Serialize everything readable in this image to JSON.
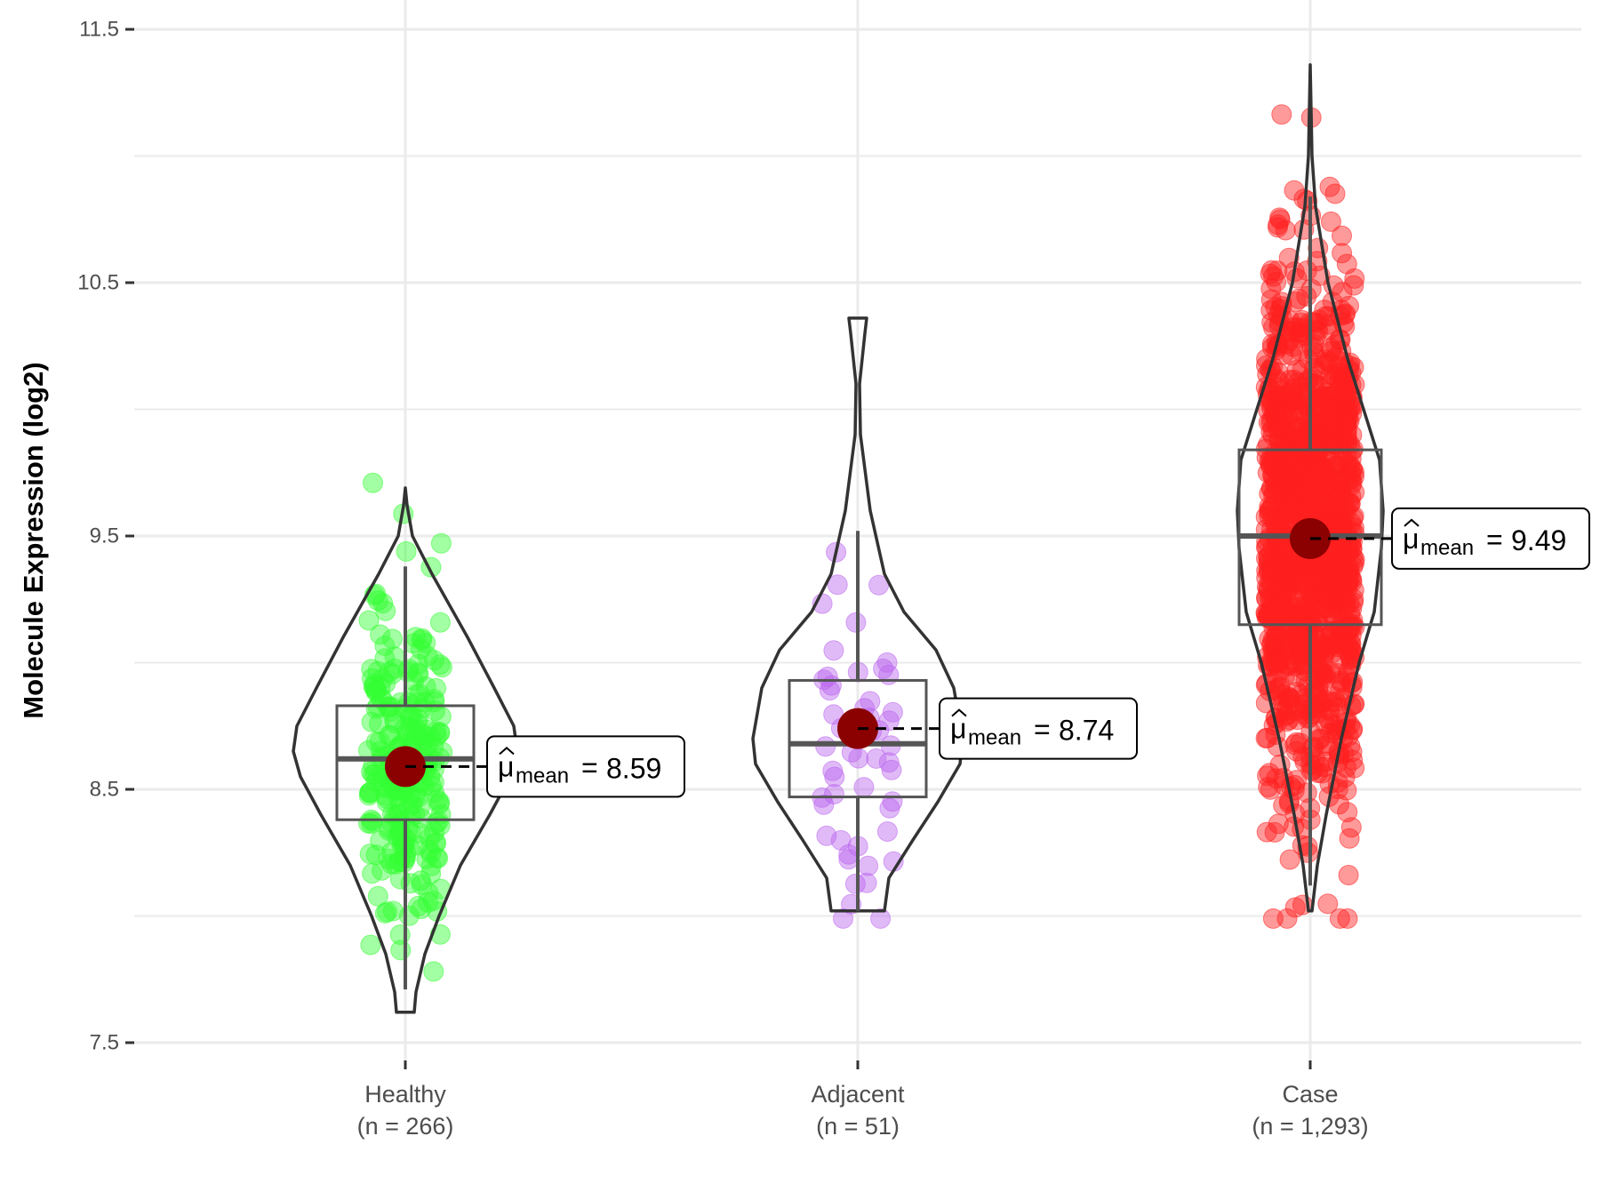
{
  "chart_data": {
    "type": "violin",
    "title": "",
    "xlabel": "",
    "ylabel": "Molecule Expression (log2)",
    "ylim": [
      7.5,
      11.5
    ],
    "yticks": [
      "7.5",
      "8.5",
      "9.5",
      "10.5",
      "11.5"
    ],
    "grid": true,
    "legend": "none",
    "categories": [
      "Healthy",
      "Adjacent",
      "Case"
    ],
    "category_counts": [
      "(n = 266)",
      "(n = 51)",
      "(n = 1,293)"
    ],
    "series": [
      {
        "name": "Healthy",
        "n": 266,
        "color": "#33FF33",
        "mean": 8.59,
        "mean_label": "8.59",
        "median": 8.62,
        "q1": 8.38,
        "q3": 8.83,
        "whisker_low": 7.71,
        "whisker_high": 9.38,
        "min": 7.62,
        "max": 9.69
      },
      {
        "name": "Adjacent",
        "n": 51,
        "color": "#BB66EE",
        "mean": 8.74,
        "mean_label": "8.74",
        "median": 8.68,
        "q1": 8.47,
        "q3": 8.93,
        "whisker_low": 8.02,
        "whisker_high": 9.52,
        "min": 8.02,
        "max": 10.36
      },
      {
        "name": "Case",
        "n": 1293,
        "color": "#FF2020",
        "mean": 9.49,
        "mean_label": "9.49",
        "median": 9.5,
        "q1": 9.15,
        "q3": 9.84,
        "whisker_low": 8.12,
        "whisker_high": 10.84,
        "min": 8.02,
        "max": 11.36
      }
    ],
    "mean_annotation": {
      "symbol": "μ",
      "subscript": "mean",
      "equals": "="
    },
    "mean_point_color": "#8B0000"
  }
}
